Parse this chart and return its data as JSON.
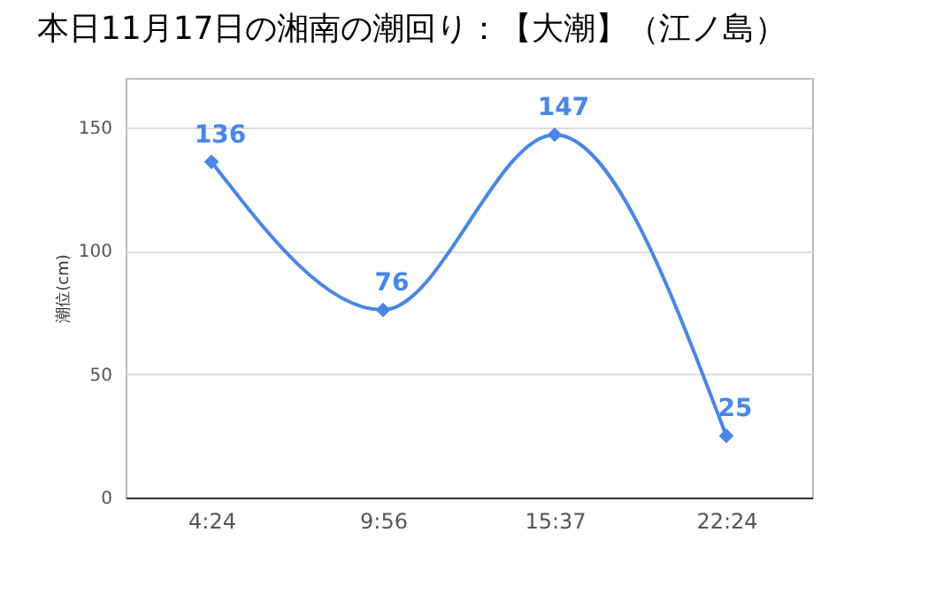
{
  "chart_data": {
    "type": "line",
    "title": "本日11月17日の湘南の潮回り：【大潮】（江ノ島）",
    "ylabel": "潮位(cm)",
    "categories": [
      "4:24",
      "9:56",
      "15:37",
      "22:24"
    ],
    "series": [
      {
        "color": "#4a86e8",
        "values": [
          136,
          76,
          147,
          25
        ]
      }
    ],
    "ylim": [
      0,
      170
    ],
    "yticks": [
      0,
      50,
      100,
      150
    ],
    "grid": "y",
    "marker": "diamond",
    "data_labels": true
  }
}
